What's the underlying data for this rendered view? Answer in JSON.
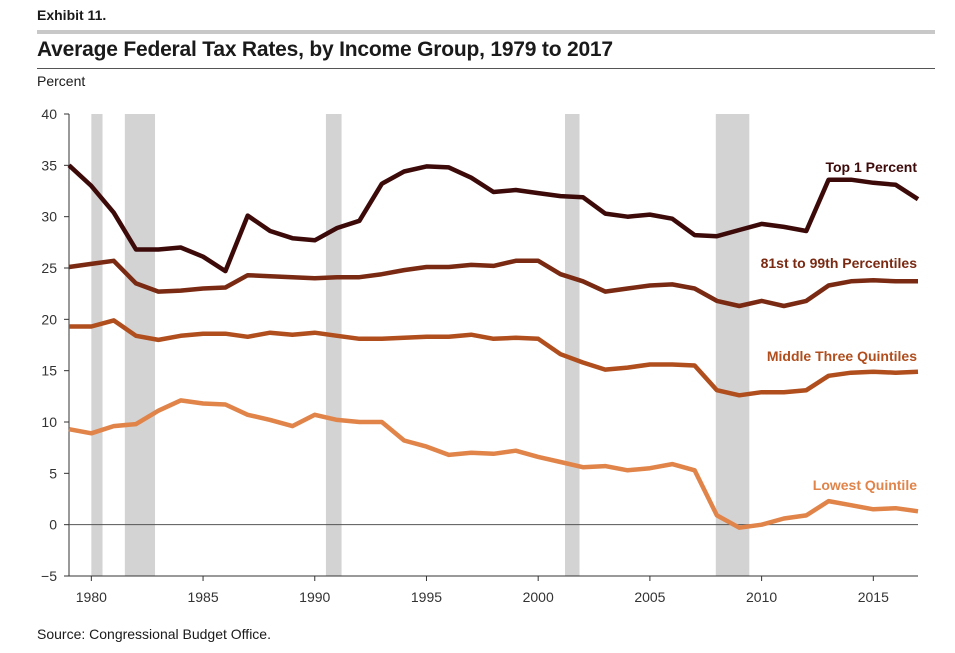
{
  "header": {
    "exhibit": "Exhibit 11.",
    "title": "Average Federal Tax Rates, by Income Group, 1979 to 2017"
  },
  "footer": {
    "source": "Source: Congressional Budget Office."
  },
  "chart_data": {
    "type": "line",
    "title": "Average Federal Tax Rates, by Income Group, 1979 to 2017",
    "ylabel": "Percent",
    "xlabel": "",
    "xlim": [
      1979,
      2017
    ],
    "ylim": [
      -5,
      40
    ],
    "x_ticks": [
      1980,
      1985,
      1990,
      1995,
      2000,
      2005,
      2010,
      2015
    ],
    "y_ticks": [
      -5,
      0,
      5,
      10,
      15,
      20,
      25,
      30,
      35,
      40
    ],
    "grid": false,
    "recessions": [
      [
        1980.0,
        1980.5
      ],
      [
        1981.5,
        1982.85
      ],
      [
        1990.5,
        1991.2
      ],
      [
        2001.2,
        2001.85
      ],
      [
        2007.95,
        2009.45
      ]
    ],
    "x": [
      1979,
      1980,
      1981,
      1982,
      1983,
      1984,
      1985,
      1986,
      1987,
      1988,
      1989,
      1990,
      1991,
      1992,
      1993,
      1994,
      1995,
      1996,
      1997,
      1998,
      1999,
      2000,
      2001,
      2002,
      2003,
      2004,
      2005,
      2006,
      2007,
      2008,
      2009,
      2010,
      2011,
      2012,
      2013,
      2014,
      2015,
      2016,
      2017
    ],
    "series": [
      {
        "name": "Top 1 Percent",
        "color": "#3d0a0a",
        "values": [
          35.0,
          33.0,
          30.4,
          26.8,
          26.8,
          27.0,
          26.1,
          24.7,
          30.1,
          28.6,
          27.9,
          27.7,
          28.9,
          29.6,
          33.2,
          34.4,
          34.9,
          34.8,
          33.8,
          32.4,
          32.6,
          32.3,
          32.0,
          31.9,
          30.3,
          30.0,
          30.2,
          29.8,
          28.2,
          28.1,
          28.7,
          29.3,
          29.0,
          28.6,
          33.6,
          33.6,
          33.3,
          33.1,
          31.7
        ]
      },
      {
        "name": "81st to 99th Percentiles",
        "color": "#7a2a12",
        "values": [
          25.1,
          25.4,
          25.7,
          23.5,
          22.7,
          22.8,
          23.0,
          23.1,
          24.3,
          24.2,
          24.1,
          24.0,
          24.1,
          24.1,
          24.4,
          24.8,
          25.1,
          25.1,
          25.3,
          25.2,
          25.7,
          25.7,
          24.4,
          23.7,
          22.7,
          23.0,
          23.3,
          23.4,
          23.0,
          21.8,
          21.3,
          21.8,
          21.3,
          21.8,
          23.3,
          23.7,
          23.8,
          23.7,
          23.7
        ]
      },
      {
        "name": "Middle Three Quintiles",
        "color": "#b04e1e",
        "values": [
          19.3,
          19.3,
          19.9,
          18.4,
          18.0,
          18.4,
          18.6,
          18.6,
          18.3,
          18.7,
          18.5,
          18.7,
          18.4,
          18.1,
          18.1,
          18.2,
          18.3,
          18.3,
          18.5,
          18.1,
          18.2,
          18.1,
          16.6,
          15.8,
          15.1,
          15.3,
          15.6,
          15.6,
          15.5,
          13.1,
          12.6,
          12.9,
          12.9,
          13.1,
          14.5,
          14.8,
          14.9,
          14.8,
          14.9
        ]
      },
      {
        "name": "Lowest Quintile",
        "color": "#e0844a",
        "values": [
          9.3,
          8.9,
          9.6,
          9.8,
          11.1,
          12.1,
          11.8,
          11.7,
          10.7,
          10.2,
          9.6,
          10.7,
          10.2,
          10.0,
          10.0,
          8.2,
          7.6,
          6.8,
          7.0,
          6.9,
          7.2,
          6.6,
          6.1,
          5.6,
          5.7,
          5.3,
          5.5,
          5.9,
          5.3,
          0.9,
          -0.3,
          0.0,
          0.6,
          0.9,
          2.3,
          1.9,
          1.5,
          1.6,
          1.3
        ]
      }
    ]
  }
}
